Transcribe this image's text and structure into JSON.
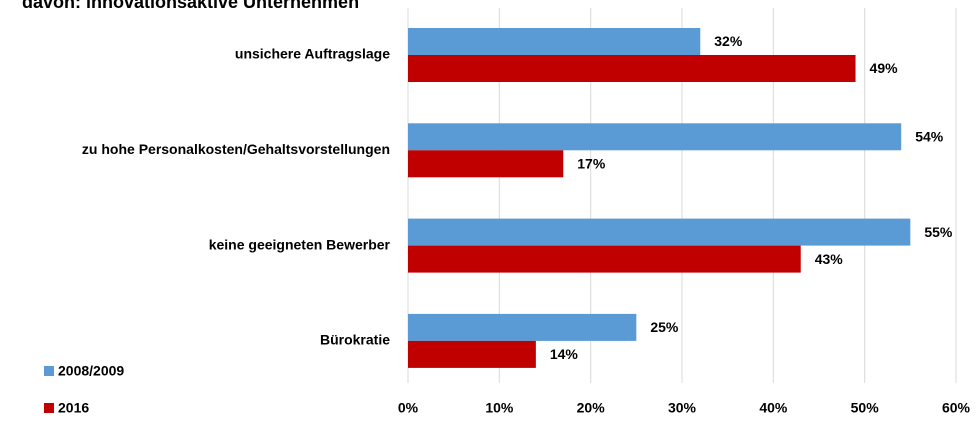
{
  "chart_data": {
    "type": "bar",
    "orientation": "horizontal",
    "title": "davon: innovationsaktive Unternehmen",
    "categories": [
      "unsichere Auftragslage",
      "zu hohe Personalkosten/Gehaltsvorstellungen",
      "keine geeigneten Bewerber",
      "Bürokratie"
    ],
    "series": [
      {
        "name": "2008/2009",
        "color": "#5b9bd5",
        "values": [
          32,
          54,
          55,
          25
        ],
        "value_labels": [
          "32%",
          "54%",
          "55%",
          "25%"
        ]
      },
      {
        "name": "2016",
        "color": "#c00000",
        "values": [
          49,
          17,
          43,
          14
        ],
        "value_labels": [
          "49%",
          "17%",
          "43%",
          "14%"
        ]
      }
    ],
    "xlim": [
      0,
      60
    ],
    "xticks": [
      {
        "value": 0,
        "label": "0%"
      },
      {
        "value": 10,
        "label": "10%"
      },
      {
        "value": 20,
        "label": "20%"
      },
      {
        "value": 30,
        "label": "30%"
      },
      {
        "value": 40,
        "label": "40%"
      },
      {
        "value": 50,
        "label": "50%"
      },
      {
        "value": 60,
        "label": "60%"
      }
    ],
    "grid": true,
    "legend": "bottom-left"
  }
}
